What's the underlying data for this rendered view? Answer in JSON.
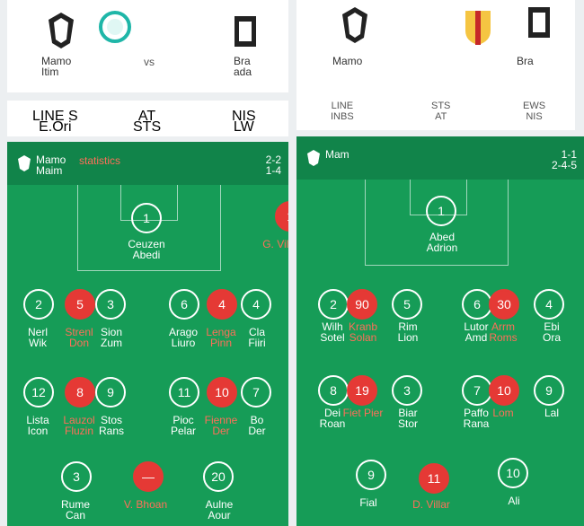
{
  "left_match": {
    "home": {
      "name": "Mamo\nItim",
      "crest": "crest-icon"
    },
    "away": {
      "name": "Bra\nada",
      "crest": "crest-icon"
    },
    "vs": "vs",
    "tabs": [
      "LINE S\nE.Ori",
      "AT\nSTS",
      "NIS\nLW"
    ]
  },
  "right_match": {
    "home": {
      "name": "Mamo",
      "crest": "crest-icon"
    },
    "away": {
      "name": "Bra",
      "crest": "crest-icon"
    },
    "tabs": [
      "LINE\nINBS",
      "STS\nAT",
      "EWS\nNIS"
    ]
  },
  "left_panel": {
    "team": "Mamo\nMaim",
    "extra": "statistics",
    "form": "2-2\n1-4",
    "goalkeeper": {
      "name": "Ceuzen\nAbedi"
    },
    "goalkeeper_red": {
      "name": "G. Vill. Vaal"
    },
    "row1": [
      {
        "name": "Nerl\nWik"
      },
      {
        "name": "Strenl\nDon",
        "red": true
      },
      {
        "name": "Sion\nZum"
      },
      {
        "name": "Arago\nLiuro"
      },
      {
        "name": "Lenga\nPinn",
        "red": true
      },
      {
        "name": "Cla\nFiiri"
      }
    ],
    "row2": [
      {
        "name": "Lista\nIcon"
      },
      {
        "name": "Lauzol\nFluzin",
        "red": true
      },
      {
        "name": "Stos\nRans"
      },
      {
        "name": "Pioc\nPelar"
      },
      {
        "name": "Fienne\nDer",
        "red": true
      },
      {
        "name": "Bo\nDer"
      }
    ],
    "row3": [
      {
        "name": "Rume\nCan"
      },
      {
        "name": "V. Bhoan",
        "red": true
      },
      {
        "name": "Aulne\nAour"
      }
    ]
  },
  "right_panel": {
    "team": "Mam",
    "form": "1-1\n2-4-5",
    "goalkeeper": {
      "name": "Abed\nAdrion"
    },
    "row1": [
      {
        "name": "Wilh\nSotel"
      },
      {
        "name": "Kranb\nSolan",
        "red": true
      },
      {
        "name": "Rim\nLion"
      },
      {
        "name": "Lutor\nAmd"
      },
      {
        "name": "Arrm\nRoms",
        "red": true
      },
      {
        "name": "Ebi\nOra"
      }
    ],
    "row2": [
      {
        "name": "Dei\nRoan"
      },
      {
        "name": "Fiet Pier",
        "red": true
      },
      {
        "name": "Biar\nStor"
      },
      {
        "name": "Paffo\nRana"
      },
      {
        "name": "Lom",
        "red": true
      },
      {
        "name": "Lal"
      }
    ],
    "row3": [
      {
        "name": "Fial"
      },
      {
        "name": "D. Villar",
        "red": true
      },
      {
        "name": "Ali"
      }
    ]
  },
  "colors": {
    "pitch": "#169c57",
    "header": "#11844a",
    "red": "#e53935",
    "card": "#ffffff"
  }
}
